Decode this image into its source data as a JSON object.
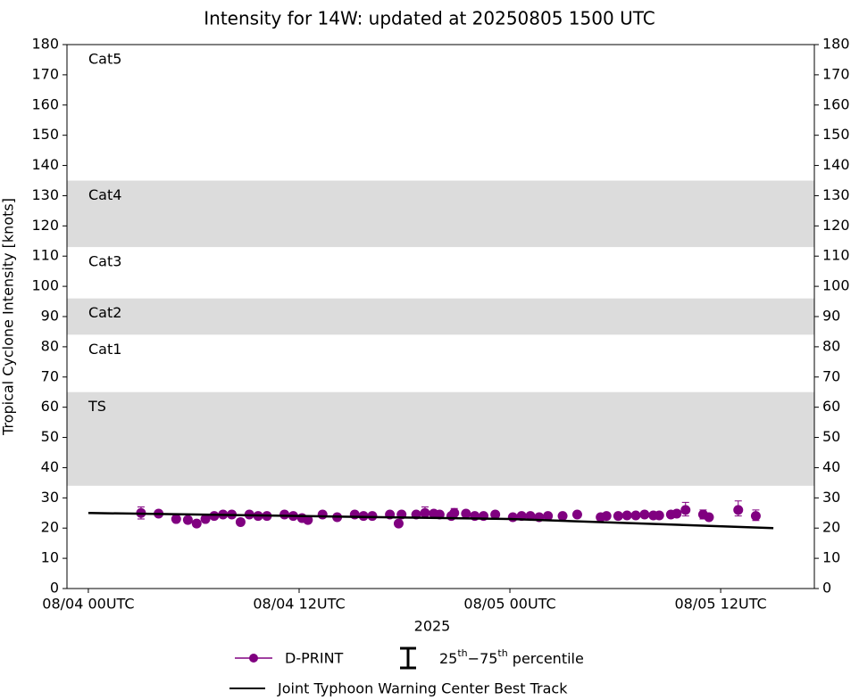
{
  "chart_data": {
    "type": "scatter",
    "title": "Intensity for 14W: updated at 20250805 1500 UTC",
    "x_label": "2025",
    "y_label": "Tropical Cyclone Intensity [knots]",
    "xlim": [
      "2025-08-03T22:47",
      "2025-08-05T17:20"
    ],
    "xticks": [
      {
        "value": "2025-08-04T00:00",
        "label": "08/04 00UTC"
      },
      {
        "value": "2025-08-04T12:00",
        "label": "08/04 12UTC"
      },
      {
        "value": "2025-08-05T00:00",
        "label": "08/05 00UTC"
      },
      {
        "value": "2025-08-05T12:00",
        "label": "08/05 12UTC"
      }
    ],
    "ylim": [
      0,
      180
    ],
    "yticks": [
      0,
      10,
      20,
      30,
      40,
      50,
      60,
      70,
      80,
      90,
      100,
      110,
      120,
      130,
      140,
      150,
      160,
      170,
      180
    ],
    "right_axis_ticks": true,
    "bands": [
      {
        "label": "TS",
        "range": [
          34,
          65
        ],
        "shaded": true
      },
      {
        "label": "Cat1",
        "range": [
          65,
          84
        ],
        "shaded": false
      },
      {
        "label": "Cat2",
        "range": [
          84,
          96
        ],
        "shaded": true
      },
      {
        "label": "Cat3",
        "range": [
          96,
          113
        ],
        "shaded": false
      },
      {
        "label": "Cat4",
        "range": [
          113,
          135
        ],
        "shaded": true
      },
      {
        "label": "Cat5",
        "range": [
          135,
          180
        ],
        "shaded": false
      }
    ],
    "band_color": "#dcdcdc",
    "errorbar_label": [
      {
        "text": "25"
      },
      {
        "text": "th",
        "sup": true
      },
      {
        "text": "−75"
      },
      {
        "text": "th",
        "sup": true
      },
      {
        "text": " percentile"
      }
    ],
    "series": [
      {
        "name": "D-PRINT",
        "color": "#800080",
        "style": "markers",
        "x": [
          "2025-08-04T03:00",
          "2025-08-04T04:00",
          "2025-08-04T05:00",
          "2025-08-04T05:40",
          "2025-08-04T06:10",
          "2025-08-04T06:40",
          "2025-08-04T07:10",
          "2025-08-04T07:40",
          "2025-08-04T08:10",
          "2025-08-04T08:40",
          "2025-08-04T09:10",
          "2025-08-04T09:40",
          "2025-08-04T10:10",
          "2025-08-04T11:10",
          "2025-08-04T11:40",
          "2025-08-04T12:10",
          "2025-08-04T12:30",
          "2025-08-04T13:20",
          "2025-08-04T14:10",
          "2025-08-04T15:10",
          "2025-08-04T15:40",
          "2025-08-04T16:10",
          "2025-08-04T17:10",
          "2025-08-04T17:40",
          "2025-08-04T17:50",
          "2025-08-04T18:40",
          "2025-08-04T19:10",
          "2025-08-04T19:40",
          "2025-08-04T20:00",
          "2025-08-04T20:40",
          "2025-08-04T20:50",
          "2025-08-04T21:30",
          "2025-08-04T22:00",
          "2025-08-04T22:30",
          "2025-08-04T23:10",
          "2025-08-05T00:10",
          "2025-08-05T00:40",
          "2025-08-05T01:10",
          "2025-08-05T01:40",
          "2025-08-05T02:10",
          "2025-08-05T03:00",
          "2025-08-05T03:50",
          "2025-08-05T05:10",
          "2025-08-05T05:30",
          "2025-08-05T06:10",
          "2025-08-05T06:40",
          "2025-08-05T07:10",
          "2025-08-05T07:40",
          "2025-08-05T08:10",
          "2025-08-05T08:30",
          "2025-08-05T09:10",
          "2025-08-05T09:30",
          "2025-08-05T10:00",
          "2025-08-05T11:00",
          "2025-08-05T11:20",
          "2025-08-05T13:00",
          "2025-08-05T14:00"
        ],
        "values": [
          25,
          24.8,
          23,
          22.7,
          21.5,
          23,
          24,
          24.5,
          24.5,
          22,
          24.5,
          24,
          24,
          24.5,
          24,
          23.3,
          22.7,
          24.5,
          23.6,
          24.5,
          24,
          24,
          24.5,
          21.5,
          24.5,
          24.5,
          25,
          24.8,
          24.5,
          24,
          25,
          24.8,
          24,
          24,
          24.5,
          23.6,
          24,
          24,
          23.6,
          24,
          24,
          24.5,
          23.6,
          24,
          24,
          24.2,
          24.2,
          24.5,
          24.2,
          24.2,
          24.5,
          24.8,
          26,
          24.5,
          23.6,
          26,
          24
        ],
        "p25": [
          23,
          23.8,
          22,
          21.7,
          20.5,
          22,
          23,
          23.5,
          23.5,
          21,
          23.5,
          23,
          23,
          23.5,
          23,
          22.3,
          21.7,
          23.5,
          22.6,
          23.5,
          23,
          23,
          23.5,
          20.5,
          23.5,
          23.5,
          23.5,
          23.8,
          23.5,
          23,
          23.5,
          23.8,
          23,
          23,
          23.5,
          22.6,
          23,
          23,
          22.6,
          23,
          23,
          23.5,
          22.6,
          23,
          23,
          23.2,
          23.2,
          23.5,
          23.2,
          23.2,
          23.5,
          23.8,
          24,
          23,
          22.6,
          24,
          22.5
        ],
        "p75": [
          27,
          25.8,
          24,
          23.7,
          22.5,
          24,
          25,
          25.5,
          25.5,
          23,
          25.5,
          25,
          25,
          25.5,
          25,
          24.3,
          23.7,
          25.5,
          24.6,
          25.5,
          25,
          25,
          25.5,
          22.5,
          25.5,
          25.5,
          27,
          25.8,
          25.5,
          25,
          26.5,
          25.8,
          25,
          25,
          25.5,
          24.6,
          25,
          25,
          24.6,
          25,
          25,
          25.5,
          24.6,
          25,
          25,
          25.2,
          25.2,
          25.5,
          25.2,
          25.2,
          25.5,
          25.8,
          28.5,
          26,
          24.6,
          29,
          26
        ]
      },
      {
        "name": "Joint Typhoon Warning Center Best Track",
        "color": "#000000",
        "style": "line",
        "x": [
          "2025-08-04T00:00",
          "2025-08-04T12:00",
          "2025-08-05T00:00",
          "2025-08-05T15:00"
        ],
        "values": [
          25,
          24,
          23,
          20
        ]
      }
    ]
  }
}
